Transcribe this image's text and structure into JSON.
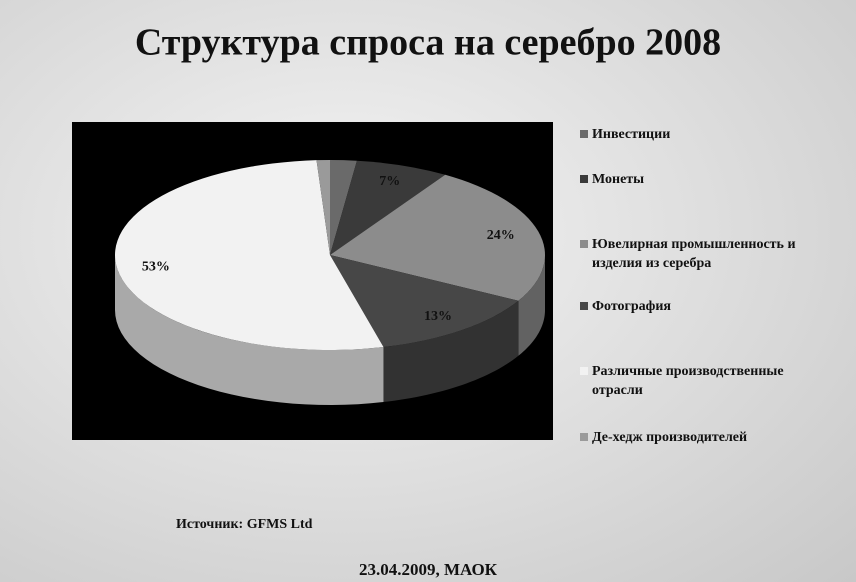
{
  "chart_data": {
    "type": "pie",
    "title": "Структура спроса на серебро 2008",
    "categories": [
      "Инвестиции",
      "Монеты",
      "Ювелирная промышленность и изделия из серебра",
      "Фотография",
      "Различные производственные отрасли",
      "Де-хедж производителей"
    ],
    "values": [
      2,
      7,
      24,
      13,
      53,
      1
    ],
    "value_labels": [
      null,
      "7%",
      "24%",
      "13%",
      "53%",
      null
    ],
    "colors": [
      "#6a6a6a",
      "#3a3a3a",
      "#8c8c8c",
      "#474747",
      "#f2f2f2",
      "#9a9a9a"
    ],
    "legend": "right"
  },
  "source": "Источник: GFMS Ltd",
  "footer": "23.04.2009, МАОК"
}
